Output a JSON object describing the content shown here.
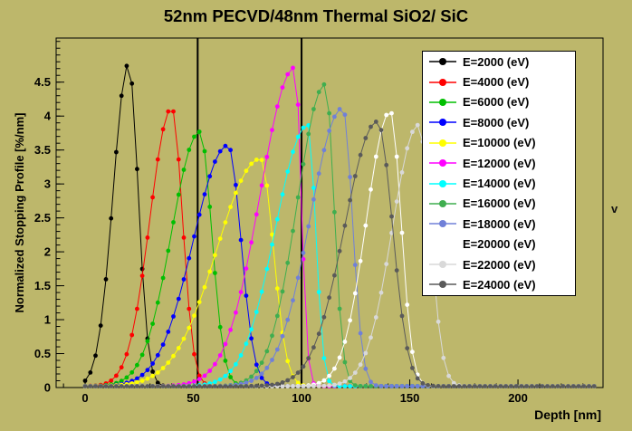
{
  "artifacts": {
    "side_glyph": "v"
  },
  "chart_data": {
    "type": "line",
    "title": "52nm PECVD/48nm Thermal SiO2/ SiC",
    "xlabel": "Depth [nm]",
    "ylabel": "Normalized Stopping Profile [%/nm]",
    "xlim": [
      -13.4,
      239.3
    ],
    "ylim": [
      0,
      5.15
    ],
    "x_ticks": [
      0,
      50,
      100,
      150,
      200
    ],
    "x_minor_step": 10,
    "y_ticks": [
      0,
      0.5,
      1,
      1.5,
      2,
      2.5,
      3,
      3.5,
      4,
      4.5
    ],
    "y_minor_step": 0.1,
    "grid": false,
    "background_color": "#bdb76b",
    "layer_boundaries_nm": [
      52,
      100
    ],
    "legend_position": "top-right",
    "marker_style": "filled-circle",
    "baseline": 0.02,
    "sample_range_nm": [
      0,
      236
    ],
    "sample_step_nm": 2.4,
    "series": [
      {
        "label": "E=2000 (eV)",
        "energy_eV": 2000,
        "color": "#000000",
        "peak_nm": 20,
        "peak_height": 4.75,
        "rise_sigma_nm": 7,
        "fall_sigma_nm": 4.5
      },
      {
        "label": "E=4000 (eV)",
        "energy_eV": 4000,
        "color": "#ff0000",
        "peak_nm": 40,
        "peak_height": 4.1,
        "rise_sigma_nm": 10,
        "fall_sigma_nm": 5
      },
      {
        "label": "E=6000 (eV)",
        "energy_eV": 6000,
        "color": "#00bf00",
        "peak_nm": 53,
        "peak_height": 3.75,
        "rise_sigma_nm": 13,
        "fall_sigma_nm": 5.5
      },
      {
        "label": "E=8000 (eV)",
        "energy_eV": 8000,
        "color": "#0000ff",
        "peak_nm": 66,
        "peak_height": 3.55,
        "rise_sigma_nm": 16,
        "fall_sigma_nm": 6
      },
      {
        "label": "E=10000 (eV)",
        "energy_eV": 10000,
        "color": "#ffff00",
        "peak_nm": 81,
        "peak_height": 3.35,
        "rise_sigma_nm": 20,
        "fall_sigma_nm": 6
      },
      {
        "label": "E=12000 (eV)",
        "energy_eV": 12000,
        "color": "#ff00ff",
        "peak_nm": 97,
        "peak_height": 4.7,
        "rise_sigma_nm": 16,
        "fall_sigma_nm": 2.8
      },
      {
        "label": "E=14000 (eV)",
        "energy_eV": 14000,
        "color": "#00ffff",
        "peak_nm": 103,
        "peak_height": 3.85,
        "rise_sigma_nm": 15,
        "fall_sigma_nm": 3.5
      },
      {
        "label": "E=16000 (eV)",
        "energy_eV": 16000,
        "color": "#3fae4f",
        "peak_nm": 111,
        "peak_height": 4.45,
        "rise_sigma_nm": 13,
        "fall_sigma_nm": 4
      },
      {
        "label": "E=18000 (eV)",
        "energy_eV": 18000,
        "color": "#7080d8",
        "peak_nm": 119,
        "peak_height": 4.1,
        "rise_sigma_nm": 15,
        "fall_sigma_nm": 4.5
      },
      {
        "label": "E=20000 (eV)",
        "energy_eV": 20000,
        "color": "#ffffff",
        "peak_nm": 141,
        "peak_height": 4.05,
        "rise_sigma_nm": 11,
        "fall_sigma_nm": 5
      },
      {
        "label": "E=22000 (eV)",
        "energy_eV": 22000,
        "color": "#d9d9d9",
        "peak_nm": 154,
        "peak_height": 3.85,
        "rise_sigma_nm": 12,
        "fall_sigma_nm": 5.5
      },
      {
        "label": "E=24000 (eV)",
        "energy_eV": 24000,
        "color": "#5a5a5a",
        "peak_nm": 135,
        "peak_height": 3.9,
        "rise_sigma_nm": 15,
        "fall_sigma_nm": 7
      }
    ]
  }
}
